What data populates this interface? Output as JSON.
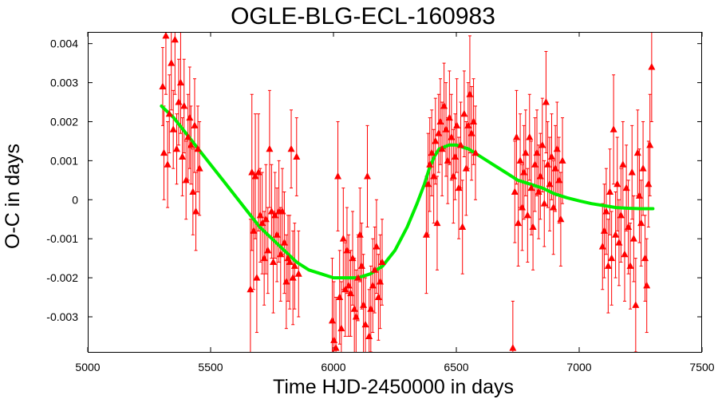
{
  "chart_data": {
    "type": "scatter",
    "title": "OGLE-BLG-ECL-160983",
    "xlabel": "Time HJD-2450000 in days",
    "ylabel": "O-C in days",
    "xlim": [
      5000,
      7500
    ],
    "ylim": [
      -0.0039,
      0.0043
    ],
    "xticks": [
      5000,
      5500,
      6000,
      6500,
      7000,
      7500
    ],
    "xtick_labels": [
      "5000",
      "5500",
      "6000",
      "6500",
      "7000",
      "7500"
    ],
    "yticks": [
      0.004,
      0.003,
      0.002,
      0.001,
      0,
      -0.001,
      -0.002,
      -0.003
    ],
    "ytick_labels": [
      "0.004",
      "0.003",
      "0.002",
      "0.001",
      "0",
      "-0.001",
      "-0.002",
      "-0.003"
    ],
    "grid": false,
    "series": [
      {
        "kind": "points-with-errorbars",
        "color": "#ff0000",
        "marker": "triangle",
        "points": [
          {
            "x": 5305,
            "y": 0.0029,
            "err": 0.001
          },
          {
            "x": 5310,
            "y": 0.0012,
            "err": 0.0012
          },
          {
            "x": 5318,
            "y": 0.0042,
            "err": 0.0015
          },
          {
            "x": 5325,
            "y": 0.0009,
            "err": 0.0011
          },
          {
            "x": 5332,
            "y": 0.0022,
            "err": 0.001
          },
          {
            "x": 5340,
            "y": 0.0035,
            "err": 0.0012
          },
          {
            "x": 5348,
            "y": 0.0018,
            "err": 0.001
          },
          {
            "x": 5355,
            "y": 0.0041,
            "err": 0.0014
          },
          {
            "x": 5362,
            "y": 0.0013,
            "err": 0.0009
          },
          {
            "x": 5370,
            "y": 0.0025,
            "err": 0.0011
          },
          {
            "x": 5378,
            "y": 0.003,
            "err": 0.0013
          },
          {
            "x": 5385,
            "y": 0.0011,
            "err": 0.001
          },
          {
            "x": 5392,
            "y": 0.0024,
            "err": 0.0012
          },
          {
            "x": 5400,
            "y": 0.0005,
            "err": 0.001
          },
          {
            "x": 5408,
            "y": 0.0016,
            "err": 0.0011
          },
          {
            "x": 5415,
            "y": 0.0021,
            "err": 0.0013
          },
          {
            "x": 5420,
            "y": 0.0014,
            "err": 0.001
          },
          {
            "x": 5428,
            "y": 0.0002,
            "err": 0.0011
          },
          {
            "x": 5435,
            "y": 0.0019,
            "err": 0.0012
          },
          {
            "x": 5440,
            "y": -0.0003,
            "err": 0.001
          },
          {
            "x": 5448,
            "y": 0.0013,
            "err": 0.0011
          },
          {
            "x": 5455,
            "y": 0.0008,
            "err": 0.0012
          },
          {
            "x": 5662,
            "y": -0.0023,
            "err": 0.0018
          },
          {
            "x": 5668,
            "y": 0.0007,
            "err": 0.002
          },
          {
            "x": 5675,
            "y": -0.0008,
            "err": 0.0015
          },
          {
            "x": 5682,
            "y": 0.0006,
            "err": 0.0016
          },
          {
            "x": 5688,
            "y": -0.002,
            "err": 0.0014
          },
          {
            "x": 5695,
            "y": 0.0007,
            "err": 0.0015
          },
          {
            "x": 5702,
            "y": -0.0004,
            "err": 0.0012
          },
          {
            "x": 5710,
            "y": -0.0006,
            "err": 0.0013
          },
          {
            "x": 5718,
            "y": -0.0015,
            "err": 0.0012
          },
          {
            "x": 5725,
            "y": -0.0005,
            "err": 0.0014
          },
          {
            "x": 5733,
            "y": -0.0013,
            "err": 0.0011
          },
          {
            "x": 5740,
            "y": 0.0013,
            "err": 0.0015
          },
          {
            "x": 5748,
            "y": -0.0003,
            "err": 0.0012
          },
          {
            "x": 5755,
            "y": -0.0016,
            "err": 0.0013
          },
          {
            "x": 5762,
            "y": -0.0004,
            "err": 0.0011
          },
          {
            "x": 5770,
            "y": -0.0009,
            "err": 0.0012
          },
          {
            "x": 5778,
            "y": -0.0003,
            "err": 0.0013
          },
          {
            "x": 5785,
            "y": -0.0014,
            "err": 0.0012
          },
          {
            "x": 5792,
            "y": -0.0003,
            "err": 0.0011
          },
          {
            "x": 5800,
            "y": -0.0011,
            "err": 0.0013
          },
          {
            "x": 5808,
            "y": -0.0021,
            "err": 0.0012
          },
          {
            "x": 5815,
            "y": -0.0015,
            "err": 0.0011
          },
          {
            "x": 5822,
            "y": -0.0016,
            "err": 0.0012
          },
          {
            "x": 5828,
            "y": 0.0013,
            "err": 0.001
          },
          {
            "x": 5835,
            "y": -0.002,
            "err": 0.0012
          },
          {
            "x": 5842,
            "y": -0.0017,
            "err": 0.0011
          },
          {
            "x": 5850,
            "y": 0.0011,
            "err": 0.001
          },
          {
            "x": 5858,
            "y": -0.0019,
            "err": 0.0011
          },
          {
            "x": 5995,
            "y": -0.0031,
            "err": 0.0016
          },
          {
            "x": 6002,
            "y": -0.0036,
            "err": 0.0015
          },
          {
            "x": 6010,
            "y": -0.0038,
            "err": 0.0013
          },
          {
            "x": 6018,
            "y": 0.0006,
            "err": 0.0014
          },
          {
            "x": 6025,
            "y": -0.0025,
            "err": 0.0012
          },
          {
            "x": 6032,
            "y": -0.0033,
            "err": 0.0012
          },
          {
            "x": 6040,
            "y": -0.001,
            "err": 0.0013
          },
          {
            "x": 6048,
            "y": -0.0023,
            "err": 0.0012
          },
          {
            "x": 6055,
            "y": -0.0013,
            "err": 0.0011
          },
          {
            "x": 6062,
            "y": -0.0022,
            "err": 0.0013
          },
          {
            "x": 6070,
            "y": -0.0024,
            "err": 0.0011
          },
          {
            "x": 6078,
            "y": -0.0015,
            "err": 0.0012
          },
          {
            "x": 6085,
            "y": -0.0028,
            "err": 0.0013
          },
          {
            "x": 6092,
            "y": -0.003,
            "err": 0.0012
          },
          {
            "x": 6100,
            "y": -0.002,
            "err": 0.0011
          },
          {
            "x": 6108,
            "y": -0.0009,
            "err": 0.0012
          },
          {
            "x": 6115,
            "y": -0.0017,
            "err": 0.0011
          },
          {
            "x": 6122,
            "y": -0.0027,
            "err": 0.0013
          },
          {
            "x": 6130,
            "y": -0.0032,
            "err": 0.0012
          },
          {
            "x": 6138,
            "y": 0.0006,
            "err": 0.0013
          },
          {
            "x": 6145,
            "y": -0.0035,
            "err": 0.0012
          },
          {
            "x": 6152,
            "y": -0.0028,
            "err": 0.0011
          },
          {
            "x": 6160,
            "y": -0.0022,
            "err": 0.0012
          },
          {
            "x": 6168,
            "y": -0.0018,
            "err": 0.0011
          },
          {
            "x": 6175,
            "y": -0.0012,
            "err": 0.0012
          },
          {
            "x": 6183,
            "y": -0.0025,
            "err": 0.0011
          },
          {
            "x": 6190,
            "y": -0.0021,
            "err": 0.0012
          },
          {
            "x": 6198,
            "y": -0.0016,
            "err": 0.0011
          },
          {
            "x": 6378,
            "y": -0.0009,
            "err": 0.0015
          },
          {
            "x": 6385,
            "y": 0.0004,
            "err": 0.0013
          },
          {
            "x": 6392,
            "y": 0.0009,
            "err": 0.0012
          },
          {
            "x": 6400,
            "y": 0.0012,
            "err": 0.0011
          },
          {
            "x": 6408,
            "y": 0.0006,
            "err": 0.0012
          },
          {
            "x": 6415,
            "y": 0.0015,
            "err": 0.0011
          },
          {
            "x": 6422,
            "y": -0.0006,
            "err": 0.0012
          },
          {
            "x": 6428,
            "y": 0.0017,
            "err": 0.001
          },
          {
            "x": 6435,
            "y": 0.002,
            "err": 0.0011
          },
          {
            "x": 6442,
            "y": 0.0013,
            "err": 0.0012
          },
          {
            "x": 6450,
            "y": 0.0024,
            "err": 0.0011
          },
          {
            "x": 6458,
            "y": 0.0018,
            "err": 0.0012
          },
          {
            "x": 6465,
            "y": 0.001,
            "err": 0.0011
          },
          {
            "x": 6472,
            "y": 0.0021,
            "err": 0.0012
          },
          {
            "x": 6480,
            "y": 0.0016,
            "err": 0.0011
          },
          {
            "x": 6488,
            "y": 0.0006,
            "err": 0.0012
          },
          {
            "x": 6495,
            "y": 0.0011,
            "err": 0.0011
          },
          {
            "x": 6502,
            "y": 0.0019,
            "err": 0.0012
          },
          {
            "x": 6510,
            "y": 0.0003,
            "err": 0.0013
          },
          {
            "x": 6518,
            "y": 0.0014,
            "err": 0.0011
          },
          {
            "x": 6525,
            "y": -0.0007,
            "err": 0.0012
          },
          {
            "x": 6532,
            "y": 0.0022,
            "err": 0.0011
          },
          {
            "x": 6540,
            "y": 0.0008,
            "err": 0.0012
          },
          {
            "x": 6548,
            "y": 0.0019,
            "err": 0.0011
          },
          {
            "x": 6555,
            "y": 0.0027,
            "err": 0.0015
          },
          {
            "x": 6562,
            "y": 0.0017,
            "err": 0.0012
          },
          {
            "x": 6570,
            "y": 0.002,
            "err": 0.0011
          },
          {
            "x": 6578,
            "y": 0.0012,
            "err": 0.0012
          },
          {
            "x": 6730,
            "y": -0.0038,
            "err": 0.0012
          },
          {
            "x": 6738,
            "y": 0.0002,
            "err": 0.0013
          },
          {
            "x": 6745,
            "y": 0.0016,
            "err": 0.0012
          },
          {
            "x": 6752,
            "y": -0.0006,
            "err": 0.0011
          },
          {
            "x": 6760,
            "y": 0.001,
            "err": 0.0012
          },
          {
            "x": 6768,
            "y": -0.0002,
            "err": 0.0011
          },
          {
            "x": 6775,
            "y": 0.0007,
            "err": 0.0012
          },
          {
            "x": 6782,
            "y": 0.0012,
            "err": 0.0011
          },
          {
            "x": 6790,
            "y": -0.0004,
            "err": 0.0012
          },
          {
            "x": 6798,
            "y": 0.0016,
            "err": 0.0011
          },
          {
            "x": 6805,
            "y": 0.0003,
            "err": 0.0012
          },
          {
            "x": 6812,
            "y": -0.0007,
            "err": 0.0011
          },
          {
            "x": 6820,
            "y": 0.0009,
            "err": 0.0012
          },
          {
            "x": 6828,
            "y": 0.0012,
            "err": 0.0011
          },
          {
            "x": 6835,
            "y": 0.0002,
            "err": 0.0012
          },
          {
            "x": 6842,
            "y": 0.0006,
            "err": 0.0011
          },
          {
            "x": 6850,
            "y": 0.0014,
            "err": 0.0012
          },
          {
            "x": 6858,
            "y": -0.0001,
            "err": 0.0011
          },
          {
            "x": 6865,
            "y": 0.0025,
            "err": 0.0013
          },
          {
            "x": 6872,
            "y": 0.0009,
            "err": 0.0011
          },
          {
            "x": 6880,
            "y": 0.0004,
            "err": 0.0012
          },
          {
            "x": 6888,
            "y": 0.0011,
            "err": 0.0011
          },
          {
            "x": 6895,
            "y": -0.0002,
            "err": 0.0012
          },
          {
            "x": 6903,
            "y": 0.0008,
            "err": 0.0011
          },
          {
            "x": 6910,
            "y": 0.0013,
            "err": 0.0012
          },
          {
            "x": 6918,
            "y": 0.0005,
            "err": 0.0011
          },
          {
            "x": 6925,
            "y": -0.0005,
            "err": 0.0012
          },
          {
            "x": 6932,
            "y": 0.001,
            "err": 0.0011
          },
          {
            "x": 7095,
            "y": -0.0012,
            "err": 0.0011
          },
          {
            "x": 7102,
            "y": -0.0008,
            "err": 0.0012
          },
          {
            "x": 7110,
            "y": -0.0003,
            "err": 0.0011
          },
          {
            "x": 7118,
            "y": -0.0017,
            "err": 0.0012
          },
          {
            "x": 7125,
            "y": 0.0002,
            "err": 0.0011
          },
          {
            "x": 7132,
            "y": -0.0015,
            "err": 0.0012
          },
          {
            "x": 7140,
            "y": 0.0018,
            "err": 0.0014
          },
          {
            "x": 7148,
            "y": -0.0009,
            "err": 0.0011
          },
          {
            "x": 7155,
            "y": 0.0004,
            "err": 0.0012
          },
          {
            "x": 7162,
            "y": -0.0011,
            "err": 0.0011
          },
          {
            "x": 7170,
            "y": -0.0004,
            "err": 0.0012
          },
          {
            "x": 7178,
            "y": 0.0009,
            "err": 0.0011
          },
          {
            "x": 7185,
            "y": -0.0014,
            "err": 0.0012
          },
          {
            "x": 7192,
            "y": 0.0003,
            "err": 0.0011
          },
          {
            "x": 7200,
            "y": -0.0007,
            "err": 0.0012
          },
          {
            "x": 7208,
            "y": -0.0017,
            "err": 0.0011
          },
          {
            "x": 7215,
            "y": 0.0007,
            "err": 0.0012
          },
          {
            "x": 7222,
            "y": -0.001,
            "err": 0.0011
          },
          {
            "x": 7230,
            "y": -0.0027,
            "err": 0.0012
          },
          {
            "x": 7238,
            "y": 0.0012,
            "err": 0.0011
          },
          {
            "x": 7245,
            "y": 0.0001,
            "err": 0.0012
          },
          {
            "x": 7252,
            "y": -0.0006,
            "err": 0.0011
          },
          {
            "x": 7260,
            "y": 0.0008,
            "err": 0.0012
          },
          {
            "x": 7268,
            "y": -0.0015,
            "err": 0.0011
          },
          {
            "x": 7275,
            "y": -0.0022,
            "err": 0.0012
          },
          {
            "x": 7282,
            "y": 0.0004,
            "err": 0.0011
          },
          {
            "x": 7288,
            "y": 0.0014,
            "err": 0.0013
          },
          {
            "x": 7295,
            "y": 0.0034,
            "err": 0.0014
          }
        ]
      },
      {
        "kind": "fit-line",
        "color": "#00ee00",
        "x": [
          5300,
          5350,
          5400,
          5450,
          5500,
          5550,
          5600,
          5650,
          5700,
          5750,
          5800,
          5850,
          5900,
          5950,
          6000,
          6050,
          6100,
          6150,
          6200,
          6250,
          6300,
          6340,
          6370,
          6390,
          6410,
          6430,
          6450,
          6470,
          6500,
          6525,
          6550,
          6600,
          6650,
          6700,
          6750,
          6800,
          6850,
          6900,
          6950,
          7000,
          7050,
          7100,
          7150,
          7200,
          7250,
          7300
        ],
        "y": [
          0.0024,
          0.0021,
          0.0017,
          0.0013,
          0.0009,
          0.0005,
          0.0001,
          -0.0003,
          -0.0007,
          -0.001,
          -0.0013,
          -0.0016,
          -0.0018,
          -0.0019,
          -0.002,
          -0.002,
          -0.002,
          -0.0019,
          -0.0017,
          -0.0013,
          -0.0007,
          -0.0001,
          0.0004,
          0.0008,
          0.0011,
          0.0013,
          0.00135,
          0.0014,
          0.0014,
          0.00135,
          0.0013,
          0.0011,
          0.0009,
          0.0007,
          0.0005,
          0.0004,
          0.0003,
          0.00015,
          5e-05,
          -3e-05,
          -0.0001,
          -0.00015,
          -0.0002,
          -0.00022,
          -0.00023,
          -0.00023
        ]
      }
    ]
  }
}
